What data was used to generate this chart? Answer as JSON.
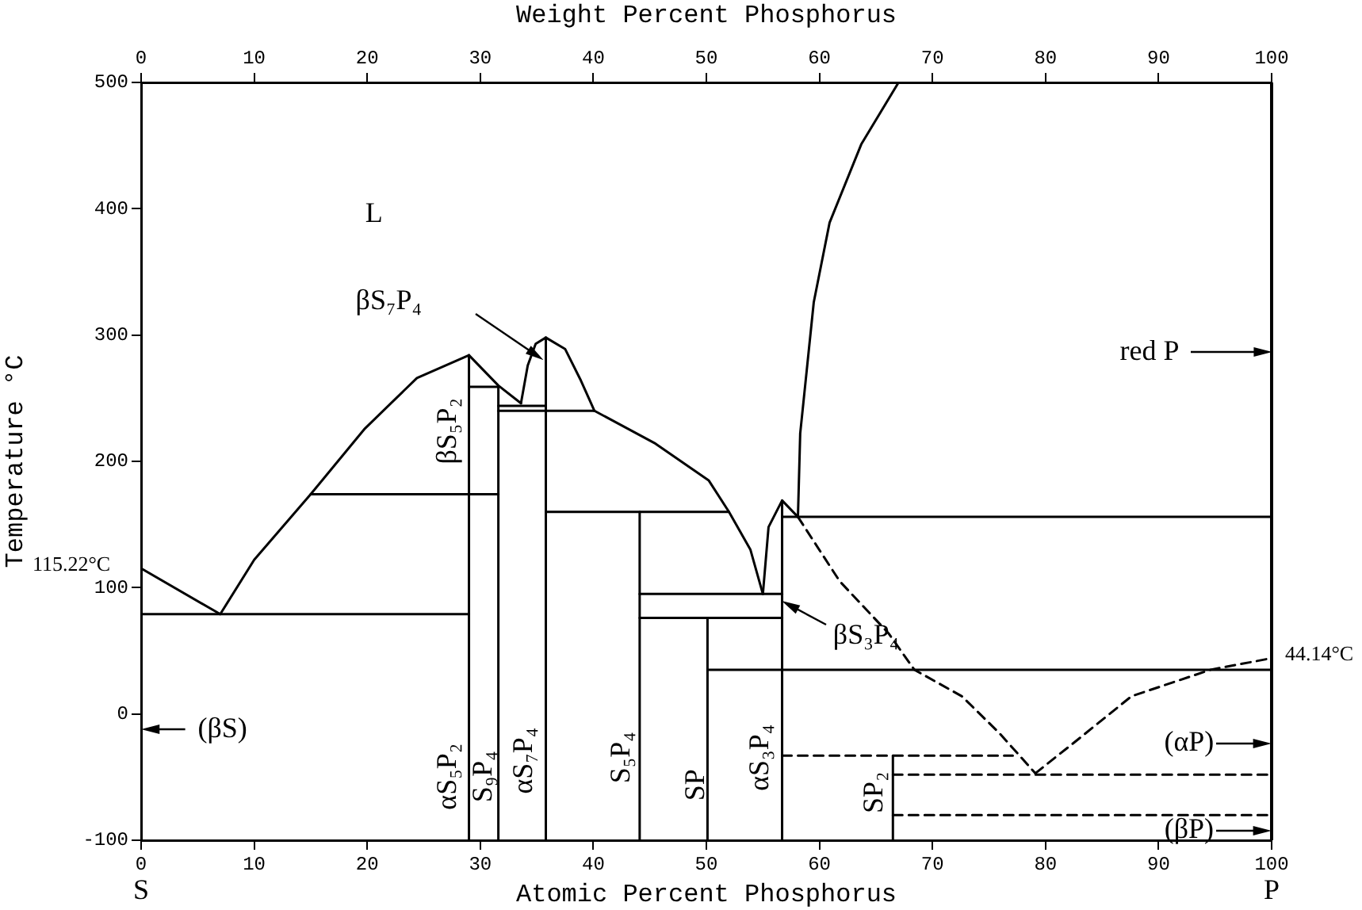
{
  "chart_data": {
    "type": "line",
    "xlabel": "Atomic Percent Phosphorus",
    "x2label": "Weight Percent Phosphorus",
    "ylabel": "Temperature °C",
    "xlim": [
      0,
      100
    ],
    "xticks": [
      0,
      10,
      20,
      30,
      40,
      50,
      60,
      70,
      80,
      90,
      100
    ],
    "x2lim": [
      0,
      100
    ],
    "x2ticks": [
      0,
      10,
      20,
      30,
      40,
      50,
      60,
      70,
      80,
      90,
      100
    ],
    "ylim": [
      -100,
      500
    ],
    "yticks": [
      -100,
      0,
      100,
      200,
      300,
      400,
      500
    ],
    "grid": false,
    "legend": false,
    "marker": "none",
    "line_style": "solid",
    "series": [
      {
        "color": "#000000",
        "x": [
          0,
          7
        ],
        "values": [
          115.22,
          79
        ]
      },
      {
        "color": "#000000",
        "x": [
          7,
          10,
          15,
          19.8,
          24.4,
          29
        ],
        "values": [
          79,
          122,
          174,
          226,
          266,
          284
        ]
      },
      {
        "color": "#000000",
        "x": [
          29,
          31.6,
          33.6
        ],
        "values": [
          284,
          260,
          246
        ]
      },
      {
        "color": "#000000",
        "x": [
          33.6,
          34.2,
          34.9,
          35.8,
          37.5,
          38.9,
          40.1
        ],
        "values": [
          246,
          276,
          293,
          298,
          289,
          264,
          240
        ]
      },
      {
        "color": "#000000",
        "x": [
          40.1,
          45.5,
          50.2,
          52,
          53.9,
          55
        ],
        "values": [
          240,
          214,
          185,
          160,
          130,
          95
        ]
      },
      {
        "color": "#000000",
        "x": [
          55,
          55.5,
          56.7,
          58.1
        ],
        "values": [
          95,
          148,
          169,
          156
        ]
      },
      {
        "color": "#000000",
        "x": [
          58.1,
          58.3,
          59.5,
          60.9,
          63.7,
          67
        ],
        "values": [
          156,
          222,
          326,
          389,
          451,
          500
        ]
      },
      {
        "color": "#000000",
        "x": [
          0,
          29
        ],
        "values": [
          79,
          79
        ]
      },
      {
        "color": "#000000",
        "x": [
          15,
          31.6
        ],
        "values": [
          174,
          174
        ]
      },
      {
        "color": "#000000",
        "x": [
          29,
          31.6
        ],
        "values": [
          259,
          259
        ]
      },
      {
        "color": "#000000",
        "x": [
          31.6,
          35.8
        ],
        "values": [
          244,
          244
        ]
      },
      {
        "color": "#000000",
        "x": [
          31.6,
          40.1
        ],
        "values": [
          240,
          240
        ]
      },
      {
        "color": "#000000",
        "x": [
          35.8,
          52
        ],
        "values": [
          160,
          160
        ]
      },
      {
        "color": "#000000",
        "x": [
          44.1,
          56.7
        ],
        "values": [
          95,
          95
        ]
      },
      {
        "color": "#000000",
        "x": [
          44.1,
          56.7
        ],
        "values": [
          76,
          76
        ]
      },
      {
        "color": "#000000",
        "x": [
          50.1,
          100
        ],
        "values": [
          35,
          35
        ]
      },
      {
        "color": "#000000",
        "x": [
          56.7,
          100
        ],
        "values": [
          156,
          156
        ]
      },
      {
        "color": "#000000",
        "x": [
          29,
          29
        ],
        "values": [
          -100,
          284
        ]
      },
      {
        "color": "#000000",
        "x": [
          31.6,
          31.6
        ],
        "values": [
          -100,
          259
        ]
      },
      {
        "color": "#000000",
        "x": [
          35.8,
          35.8
        ],
        "values": [
          -100,
          298
        ]
      },
      {
        "color": "#000000",
        "x": [
          44.1,
          44.1
        ],
        "values": [
          -100,
          160
        ]
      },
      {
        "color": "#000000",
        "x": [
          50.1,
          50.1
        ],
        "values": [
          -100,
          76
        ]
      },
      {
        "color": "#000000",
        "x": [
          56.7,
          56.7
        ],
        "values": [
          -100,
          169
        ]
      },
      {
        "color": "#000000",
        "x": [
          66.5,
          66.5
        ],
        "values": [
          -100,
          -33
        ]
      },
      {
        "color": "#000000",
        "line_style": "dashed",
        "x": [
          58.1,
          61.8,
          66.1,
          68.4,
          72.6,
          75.9,
          79.1
        ],
        "values": [
          156,
          105,
          64,
          35,
          14,
          -15,
          -47
        ]
      },
      {
        "color": "#000000",
        "line_style": "dashed",
        "x": [
          79.1,
          82.9,
          87.6,
          94.6,
          100
        ],
        "values": [
          -47,
          -20,
          14,
          35,
          44.14
        ]
      },
      {
        "color": "#000000",
        "line_style": "dashed",
        "x": [
          56.7,
          77.1
        ],
        "values": [
          -33,
          -33
        ]
      },
      {
        "color": "#000000",
        "line_style": "dashed",
        "x": [
          66.5,
          100
        ],
        "values": [
          -48,
          -48
        ]
      },
      {
        "color": "#000000",
        "line_style": "dashed",
        "x": [
          66.5,
          100
        ],
        "values": [
          -80,
          -80
        ]
      }
    ],
    "annotations": [
      "L",
      "βS₇P₄",
      "βS₅P₂",
      "αS₅P₂",
      "S₉P₄",
      "αS₇P₄",
      "S₅P₄",
      "SP",
      "αS₃P₄",
      "SP₂",
      {
        "text": "βS₃P₄",
        "x": 56.7,
        "y": 89
      },
      "red P",
      "(αP)",
      "(βP)",
      "(βS)",
      {
        "text": "115.22°C",
        "x": 0,
        "y": 115.22
      },
      {
        "text": "44.14°C",
        "x": 100,
        "y": 44.14
      },
      "S",
      "P"
    ]
  }
}
